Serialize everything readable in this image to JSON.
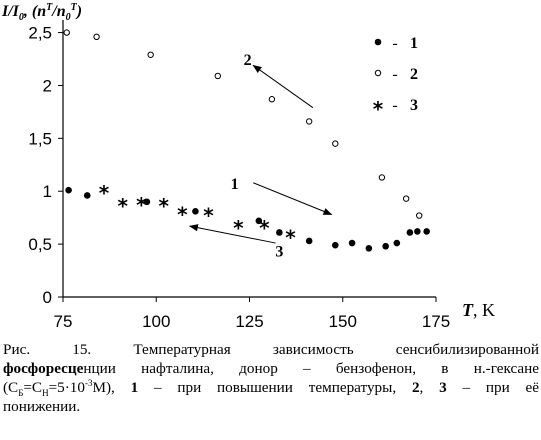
{
  "chart_data": {
    "type": "scatter",
    "ylabel_parts": [
      "I/I",
      "0",
      ", (n",
      "T",
      "/n",
      "0",
      "T",
      ")"
    ],
    "xlabel_parts": [
      "T",
      ", K"
    ],
    "xlim": [
      75,
      175
    ],
    "ylim": [
      0,
      2.6
    ],
    "x_ticks": [
      75,
      100,
      125,
      150,
      175
    ],
    "y_ticks": [
      0,
      0.5,
      1,
      1.5,
      2,
      2.5
    ],
    "x_tick_labels": [
      "75",
      "100",
      "125",
      "150",
      "175"
    ],
    "y_tick_labels": [
      "0",
      "0,5",
      "1",
      "1,5",
      "2",
      "2,5"
    ],
    "legend": [
      {
        "name": "1",
        "marker": "filled-circle"
      },
      {
        "name": "2",
        "marker": "open-circle"
      },
      {
        "name": "3",
        "marker": "asterisk"
      }
    ],
    "legend_dash": "-",
    "series": [
      {
        "name": "1",
        "marker": "filled-circle",
        "points": [
          [
            76.5,
            1.01
          ],
          [
            81.5,
            0.96
          ],
          [
            97.5,
            0.9
          ],
          [
            110.5,
            0.81
          ],
          [
            127.5,
            0.72
          ],
          [
            133,
            0.61
          ],
          [
            141,
            0.53
          ],
          [
            148,
            0.49
          ],
          [
            152.5,
            0.51
          ],
          [
            157,
            0.46
          ],
          [
            161.5,
            0.48
          ],
          [
            164.5,
            0.51
          ],
          [
            168,
            0.61
          ],
          [
            170,
            0.62
          ],
          [
            172.5,
            0.62
          ]
        ]
      },
      {
        "name": "2",
        "marker": "open-circle",
        "points": [
          [
            76,
            2.5
          ],
          [
            84,
            2.46
          ],
          [
            98.5,
            2.29
          ],
          [
            116.5,
            2.09
          ],
          [
            131,
            1.87
          ],
          [
            141,
            1.66
          ],
          [
            148,
            1.45
          ],
          [
            160.5,
            1.13
          ],
          [
            167,
            0.93
          ],
          [
            170.5,
            0.77
          ]
        ]
      },
      {
        "name": "3",
        "marker": "asterisk",
        "points": [
          [
            86,
            1.0
          ],
          [
            91,
            0.88
          ],
          [
            96,
            0.89
          ],
          [
            102,
            0.88
          ],
          [
            107,
            0.8
          ],
          [
            114,
            0.79
          ],
          [
            122,
            0.67
          ],
          [
            129,
            0.67
          ],
          [
            136,
            0.58
          ]
        ]
      }
    ],
    "annotations": [
      {
        "label": "1",
        "at": [
          121,
          1.08
        ],
        "arrow_from": [
          126,
          1.08
        ],
        "arrow_to": [
          147,
          0.78
        ]
      },
      {
        "label": "2",
        "at": [
          124.5,
          2.25
        ],
        "arrow_from": [
          142,
          1.79
        ],
        "arrow_to": [
          126,
          2.19
        ]
      },
      {
        "label": "3",
        "at": [
          133,
          0.44
        ],
        "arrow_from": [
          132,
          0.51
        ],
        "arrow_to": [
          109,
          0.67
        ]
      }
    ]
  },
  "caption": {
    "line1": [
      {
        "t": "Рис.  15.  Температурная  зависимость  сенсибилизированной",
        "b": false
      }
    ],
    "line2_bold": "фосфоресце",
    "line2_rest": "нции     нафталина,  донор  –  бензофенон,     в  н.-гексане",
    "line3_pre": "(С",
    "line3_sub1": "Б",
    "line3_mid1": "=С",
    "line3_sub2": "Н",
    "line3_mid2": "=5·10",
    "line3_sup": "-3",
    "line3_mid3": "М),  ",
    "line3_b1": "1",
    "line3_mid4": "  –  при  повышении  температуры,  ",
    "line3_b2": "2",
    "line3_mid5": ",  ",
    "line3_b3": "3",
    "line3_mid6": "  –  при  её",
    "line4": "понижении."
  }
}
